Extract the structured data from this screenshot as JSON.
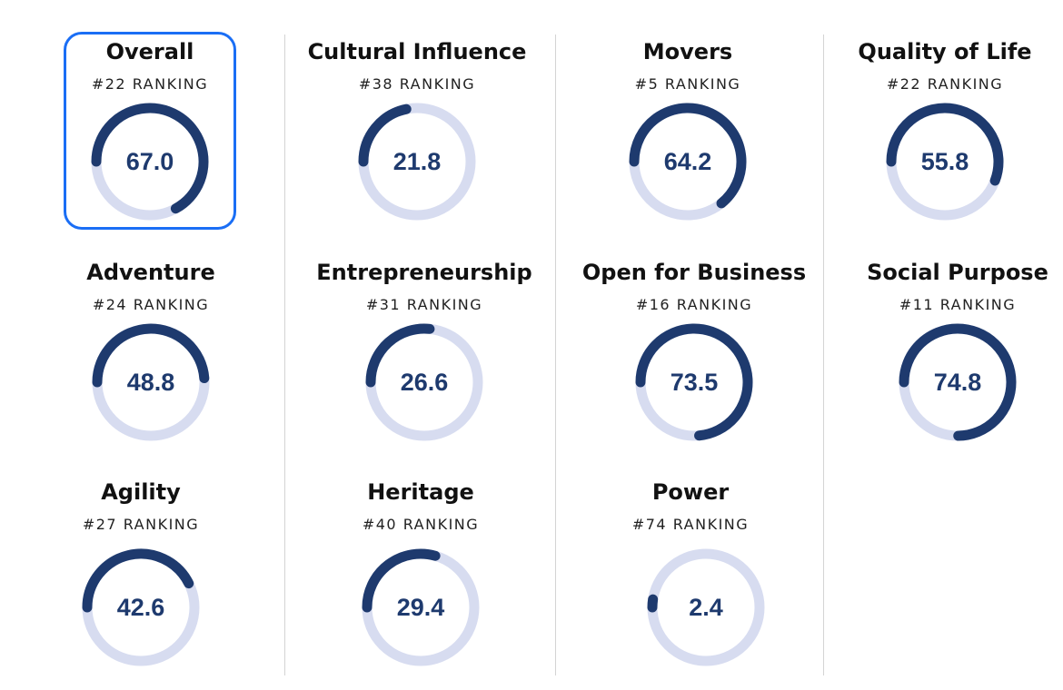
{
  "colors": {
    "track": "#d7dcf0",
    "arc": "#1e3a6e",
    "value_text": "#1e3a6e",
    "selected_border": "#1a6ef5"
  },
  "selected_metric": "Overall",
  "metrics": [
    {
      "title": "Overall",
      "ranking": "#22 RANKING",
      "value_label": "67.0",
      "score": 67.0,
      "selected": true
    },
    {
      "title": "Cultural Influence",
      "ranking": "#38 RANKING",
      "value_label": "21.8",
      "score": 21.8,
      "selected": false
    },
    {
      "title": "Movers",
      "ranking": "#5 RANKING",
      "value_label": "64.2",
      "score": 64.2,
      "selected": false
    },
    {
      "title": "Quality of Life",
      "ranking": "#22 RANKING",
      "value_label": "55.8",
      "score": 55.8,
      "selected": false
    },
    {
      "title": "Adventure",
      "ranking": "#24 RANKING",
      "value_label": "48.8",
      "score": 48.8,
      "selected": false
    },
    {
      "title": "Entrepreneurship",
      "ranking": "#31 RANKING",
      "value_label": "26.6",
      "score": 26.6,
      "selected": false
    },
    {
      "title": "Open for Business",
      "ranking": "#16 RANKING",
      "value_label": "73.5",
      "score": 73.5,
      "selected": false
    },
    {
      "title": "Social Purpose",
      "ranking": "#11 RANKING",
      "value_label": "74.8",
      "score": 74.8,
      "selected": false
    },
    {
      "title": "Agility",
      "ranking": "#27 RANKING",
      "value_label": "42.6",
      "score": 42.6,
      "selected": false
    },
    {
      "title": "Heritage",
      "ranking": "#40 RANKING",
      "value_label": "29.4",
      "score": 29.4,
      "selected": false
    },
    {
      "title": "Power",
      "ranking": "#74 RANKING",
      "value_label": "2.4",
      "score": 2.4,
      "selected": false
    }
  ]
}
